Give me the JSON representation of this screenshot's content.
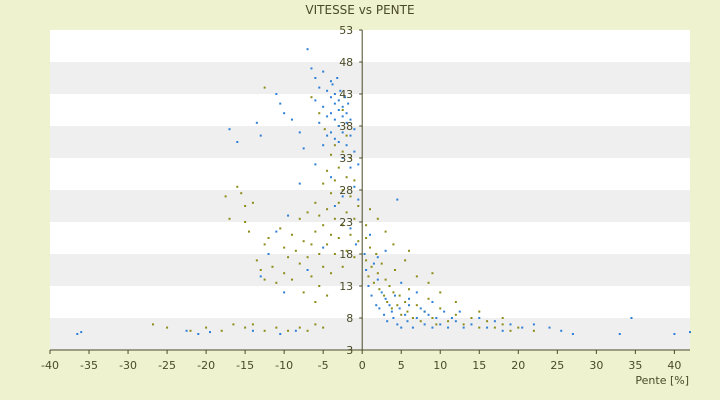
{
  "chart_data": {
    "type": "scatter",
    "title": "VITESSE vs PENTE",
    "xlabel": "Pente [%]",
    "ylabel": "",
    "xlim": [
      -40,
      42
    ],
    "ylim": [
      3,
      53
    ],
    "x_ticks": [
      "-40",
      "-35",
      "-30",
      "-25",
      "-20",
      "-15",
      "-10",
      "-5",
      "0",
      "5",
      "10",
      "15",
      "20",
      "25",
      "30",
      "35",
      "40"
    ],
    "x_tick_values": [
      -40,
      -35,
      -30,
      -25,
      -20,
      -15,
      -10,
      -5,
      0,
      5,
      10,
      15,
      20,
      25,
      30,
      35,
      40
    ],
    "y_ticks": [
      "3",
      "8",
      "13",
      "18",
      "23",
      "28",
      "33",
      "38",
      "43",
      "48",
      "53"
    ],
    "y_tick_values": [
      3,
      8,
      13,
      18,
      23,
      28,
      33,
      38,
      43,
      48,
      53
    ],
    "grid": true,
    "legend": "none",
    "colors": {
      "background": "#eef2cf",
      "band_light": "#ffffff",
      "band_shade": "#efefef",
      "axis": "#4a4a28",
      "series_blue": "#2e7fd6",
      "series_olive": "#8c8c18"
    },
    "series": [
      {
        "color": "#8c8c18",
        "points": [
          [
            -26.8,
            7.0
          ],
          [
            -25.0,
            6.5
          ],
          [
            -22.0,
            6.0
          ],
          [
            -20.0,
            6.5
          ],
          [
            -18.0,
            6.0
          ],
          [
            -16.5,
            7.0
          ],
          [
            -15.0,
            6.5
          ],
          [
            -14.0,
            7.0
          ],
          [
            -12.5,
            6.0
          ],
          [
            -11.0,
            6.5
          ],
          [
            -9.5,
            6.0
          ],
          [
            -8.0,
            6.5
          ],
          [
            -7.0,
            6.0
          ],
          [
            -6.0,
            7.0
          ],
          [
            -5.0,
            6.5
          ],
          [
            -17.5,
            27.0
          ],
          [
            -17.0,
            23.5
          ],
          [
            -16.0,
            28.5
          ],
          [
            -15.5,
            27.5
          ],
          [
            -15.0,
            25.5
          ],
          [
            -15.0,
            23.0
          ],
          [
            -14.5,
            21.5
          ],
          [
            -14.0,
            26.0
          ],
          [
            -13.5,
            17.0
          ],
          [
            -13.0,
            15.5
          ],
          [
            -12.5,
            19.5
          ],
          [
            -12.5,
            14.0
          ],
          [
            -12.0,
            20.5
          ],
          [
            -11.5,
            16.0
          ],
          [
            -11.0,
            13.5
          ],
          [
            -10.5,
            22.0
          ],
          [
            -10.0,
            19.0
          ],
          [
            -10.0,
            15.0
          ],
          [
            -9.5,
            17.5
          ],
          [
            -9.0,
            21.0
          ],
          [
            -9.0,
            14.0
          ],
          [
            -8.5,
            18.5
          ],
          [
            -8.0,
            23.5
          ],
          [
            -8.0,
            16.5
          ],
          [
            -7.5,
            20.0
          ],
          [
            -7.5,
            12.0
          ],
          [
            -7.0,
            24.5
          ],
          [
            -7.0,
            17.5
          ],
          [
            -6.5,
            19.5
          ],
          [
            -6.5,
            14.5
          ],
          [
            -6.0,
            26.0
          ],
          [
            -6.0,
            21.5
          ],
          [
            -6.0,
            10.5
          ],
          [
            -5.5,
            24.0
          ],
          [
            -5.5,
            18.0
          ],
          [
            -5.5,
            13.0
          ],
          [
            -5.0,
            29.0
          ],
          [
            -5.0,
            22.5
          ],
          [
            -5.0,
            16.0
          ],
          [
            -4.5,
            31.0
          ],
          [
            -4.5,
            25.0
          ],
          [
            -4.5,
            19.5
          ],
          [
            -4.5,
            11.5
          ],
          [
            -4.0,
            33.5
          ],
          [
            -4.0,
            27.5
          ],
          [
            -4.0,
            21.0
          ],
          [
            -4.0,
            15.0
          ],
          [
            -3.5,
            35.0
          ],
          [
            -3.5,
            29.5
          ],
          [
            -3.5,
            23.5
          ],
          [
            -3.5,
            18.0
          ],
          [
            -3.0,
            38.0
          ],
          [
            -3.0,
            31.5
          ],
          [
            -3.0,
            26.0
          ],
          [
            -3.0,
            20.5
          ],
          [
            -2.5,
            40.5
          ],
          [
            -2.5,
            34.0
          ],
          [
            -2.5,
            28.0
          ],
          [
            -2.5,
            22.5
          ],
          [
            -2.5,
            16.0
          ],
          [
            -2.0,
            36.5
          ],
          [
            -2.0,
            30.0
          ],
          [
            -2.0,
            24.5
          ],
          [
            -2.0,
            18.5
          ],
          [
            -1.5,
            33.0
          ],
          [
            -1.5,
            27.0
          ],
          [
            -1.5,
            21.0
          ],
          [
            -1.0,
            29.5
          ],
          [
            -1.0,
            23.5
          ],
          [
            -1.0,
            17.5
          ],
          [
            -0.5,
            25.5
          ],
          [
            -0.5,
            20.0
          ],
          [
            -6.5,
            42.5
          ],
          [
            -5.5,
            40.0
          ],
          [
            -4.8,
            37.5
          ],
          [
            -12.5,
            44.0
          ],
          [
            0.5,
            20.5
          ],
          [
            0.5,
            17.0
          ],
          [
            0.8,
            14.5
          ],
          [
            1.0,
            19.0
          ],
          [
            1.2,
            16.0
          ],
          [
            1.5,
            13.5
          ],
          [
            1.8,
            18.0
          ],
          [
            2.0,
            15.0
          ],
          [
            2.2,
            12.5
          ],
          [
            2.5,
            16.5
          ],
          [
            2.8,
            11.5
          ],
          [
            3.0,
            14.0
          ],
          [
            3.2,
            10.5
          ],
          [
            3.5,
            13.0
          ],
          [
            3.8,
            9.5
          ],
          [
            4.0,
            12.0
          ],
          [
            4.2,
            15.5
          ],
          [
            4.5,
            10.0
          ],
          [
            4.8,
            11.5
          ],
          [
            5.0,
            8.5
          ],
          [
            5.5,
            10.5
          ],
          [
            5.8,
            9.0
          ],
          [
            6.0,
            12.5
          ],
          [
            6.5,
            8.0
          ],
          [
            7.0,
            10.0
          ],
          [
            7.5,
            7.5
          ],
          [
            8.0,
            9.0
          ],
          [
            8.5,
            11.0
          ],
          [
            9.0,
            8.0
          ],
          [
            9.5,
            7.0
          ],
          [
            10.0,
            9.5
          ],
          [
            11.0,
            7.5
          ],
          [
            12.0,
            8.5
          ],
          [
            13.0,
            7.0
          ],
          [
            14.0,
            8.0
          ],
          [
            15.0,
            6.5
          ],
          [
            16.0,
            7.5
          ],
          [
            17.0,
            6.5
          ],
          [
            18.0,
            7.0
          ],
          [
            19.0,
            6.0
          ],
          [
            20.0,
            6.5
          ],
          [
            22.0,
            6.0
          ],
          [
            3.0,
            21.5
          ],
          [
            4.0,
            19.5
          ],
          [
            5.5,
            17.0
          ],
          [
            7.0,
            14.5
          ],
          [
            8.5,
            13.5
          ],
          [
            10.0,
            12.0
          ],
          [
            2.0,
            23.5
          ],
          [
            1.0,
            25.0
          ],
          [
            0.5,
            22.5
          ],
          [
            6.0,
            18.5
          ],
          [
            9.0,
            15.0
          ],
          [
            12.0,
            10.5
          ],
          [
            15.0,
            9.0
          ],
          [
            18.0,
            8.0
          ]
        ]
      },
      {
        "color": "#2e7fd6",
        "points": [
          [
            -36.5,
            5.5
          ],
          [
            -36.0,
            5.8
          ],
          [
            -22.5,
            6.0
          ],
          [
            -21.0,
            5.5
          ],
          [
            -19.5,
            5.8
          ],
          [
            -14.0,
            6.0
          ],
          [
            -10.5,
            5.5
          ],
          [
            -8.5,
            6.0
          ],
          [
            -17.0,
            37.5
          ],
          [
            -16.0,
            35.5
          ],
          [
            -13.5,
            38.5
          ],
          [
            -13.0,
            36.5
          ],
          [
            -11.0,
            43.0
          ],
          [
            -10.5,
            41.5
          ],
          [
            -10.0,
            40.0
          ],
          [
            -9.0,
            39.0
          ],
          [
            -8.0,
            37.0
          ],
          [
            -7.5,
            34.5
          ],
          [
            -7.0,
            50.0
          ],
          [
            -6.5,
            47.0
          ],
          [
            -6.0,
            45.5
          ],
          [
            -6.0,
            42.0
          ],
          [
            -5.5,
            44.0
          ],
          [
            -5.5,
            38.5
          ],
          [
            -5.0,
            46.5
          ],
          [
            -5.0,
            41.0
          ],
          [
            -5.0,
            35.0
          ],
          [
            -4.5,
            43.5
          ],
          [
            -4.5,
            39.5
          ],
          [
            -4.5,
            36.5
          ],
          [
            -4.0,
            45.0
          ],
          [
            -4.0,
            42.5
          ],
          [
            -4.0,
            40.0
          ],
          [
            -4.0,
            37.0
          ],
          [
            -3.8,
            44.5
          ],
          [
            -3.5,
            43.0
          ],
          [
            -3.5,
            41.5
          ],
          [
            -3.5,
            39.0
          ],
          [
            -3.5,
            36.0
          ],
          [
            -3.2,
            45.5
          ],
          [
            -3.0,
            42.0
          ],
          [
            -3.0,
            40.5
          ],
          [
            -3.0,
            38.0
          ],
          [
            -3.0,
            35.5
          ],
          [
            -2.8,
            43.5
          ],
          [
            -2.5,
            41.0
          ],
          [
            -2.5,
            39.5
          ],
          [
            -2.5,
            37.0
          ],
          [
            -2.5,
            33.0
          ],
          [
            -2.2,
            42.5
          ],
          [
            -2.0,
            40.0
          ],
          [
            -2.0,
            38.5
          ],
          [
            -2.0,
            35.0
          ],
          [
            -1.8,
            41.5
          ],
          [
            -1.5,
            39.0
          ],
          [
            -1.5,
            36.5
          ],
          [
            -1.5,
            31.5
          ],
          [
            -1.0,
            37.5
          ],
          [
            -1.0,
            34.0
          ],
          [
            -1.0,
            28.5
          ],
          [
            -0.5,
            32.0
          ],
          [
            -0.5,
            26.5
          ],
          [
            -6.0,
            32.0
          ],
          [
            -8.0,
            29.0
          ],
          [
            -9.5,
            24.0
          ],
          [
            -11.0,
            21.5
          ],
          [
            -12.0,
            18.0
          ],
          [
            -13.0,
            14.5
          ],
          [
            -10.0,
            12.0
          ],
          [
            -7.0,
            15.5
          ],
          [
            -5.0,
            19.0
          ],
          [
            -3.5,
            25.5
          ],
          [
            -4.0,
            30.0
          ],
          [
            -2.5,
            27.0
          ],
          [
            -1.5,
            22.0
          ],
          [
            -0.8,
            19.5
          ],
          [
            0.3,
            18.0
          ],
          [
            0.5,
            15.5
          ],
          [
            0.8,
            13.0
          ],
          [
            1.0,
            21.0
          ],
          [
            1.2,
            11.5
          ],
          [
            1.5,
            16.5
          ],
          [
            1.8,
            10.0
          ],
          [
            2.0,
            14.0
          ],
          [
            2.2,
            9.5
          ],
          [
            2.5,
            12.0
          ],
          [
            2.8,
            8.5
          ],
          [
            3.0,
            11.0
          ],
          [
            3.2,
            7.5
          ],
          [
            3.5,
            10.0
          ],
          [
            3.8,
            9.0
          ],
          [
            4.0,
            8.0
          ],
          [
            4.2,
            11.5
          ],
          [
            4.5,
            7.0
          ],
          [
            4.8,
            9.5
          ],
          [
            5.0,
            6.5
          ],
          [
            5.5,
            8.5
          ],
          [
            5.8,
            7.5
          ],
          [
            6.0,
            10.0
          ],
          [
            6.5,
            6.5
          ],
          [
            7.0,
            8.0
          ],
          [
            7.5,
            9.5
          ],
          [
            8.0,
            7.0
          ],
          [
            8.5,
            8.5
          ],
          [
            9.0,
            6.5
          ],
          [
            9.5,
            8.0
          ],
          [
            10.0,
            7.0
          ],
          [
            10.5,
            9.0
          ],
          [
            11.0,
            6.5
          ],
          [
            11.5,
            8.0
          ],
          [
            12.0,
            7.5
          ],
          [
            13.0,
            6.5
          ],
          [
            14.0,
            7.0
          ],
          [
            15.0,
            8.0
          ],
          [
            16.0,
            6.5
          ],
          [
            17.0,
            7.5
          ],
          [
            18.0,
            6.0
          ],
          [
            19.0,
            7.0
          ],
          [
            20.5,
            6.5
          ],
          [
            22.0,
            7.0
          ],
          [
            24.0,
            6.5
          ],
          [
            25.5,
            6.0
          ],
          [
            27.0,
            5.5
          ],
          [
            33.0,
            5.5
          ],
          [
            34.5,
            8.0
          ],
          [
            40.0,
            5.5
          ],
          [
            42.0,
            5.8
          ],
          [
            4.5,
            26.5
          ],
          [
            3.0,
            18.5
          ],
          [
            2.0,
            17.5
          ],
          [
            5.0,
            13.5
          ],
          [
            7.0,
            12.0
          ],
          [
            9.0,
            10.5
          ],
          [
            12.5,
            9.0
          ],
          [
            6.0,
            11.0
          ],
          [
            8.0,
            9.0
          ]
        ]
      }
    ]
  }
}
